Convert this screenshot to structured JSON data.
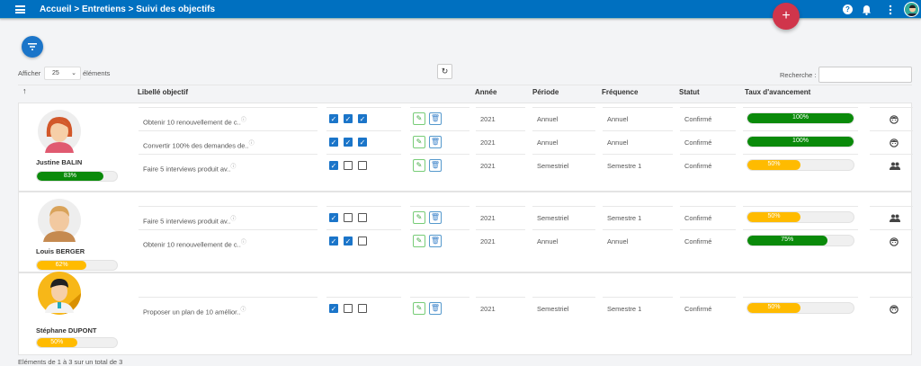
{
  "topbar": {
    "breadcrumb": "Accueil > Entretiens > Suivi des objectifs",
    "add_label": "+",
    "help_label": "?"
  },
  "colors": {
    "header": "#0070c0",
    "fab": "#d0354b",
    "green": "#0a8a0a",
    "yellow": "#ffbb00",
    "primary": "#1b75c9"
  },
  "toolbar": {
    "show_label": "Afficher",
    "page_size": "25",
    "elements_label": "éléments",
    "search_label": "Recherche :",
    "search_value": ""
  },
  "columns": {
    "sort": "↑",
    "label": "Libellé objectif",
    "year": "Année",
    "period": "Période",
    "frequency": "Fréquence",
    "status": "Statut",
    "progress": "Taux d'avancement"
  },
  "groups": [
    {
      "name": "Justine BALIN",
      "progress": 83,
      "progress_label": "83%",
      "avatar": "female-red-hair",
      "rows": [
        {
          "label": "Obtenir 10 renouvellement de c..",
          "checks": [
            true,
            true,
            true
          ],
          "year": "2021",
          "period": "Annuel",
          "frequency": "Annuel",
          "status": "Confirmé",
          "progress": 100,
          "progress_label": "100%",
          "icon": "person-icon"
        },
        {
          "label": "Convertir 100% des demandes de..",
          "checks": [
            true,
            true,
            true
          ],
          "year": "2021",
          "period": "Annuel",
          "frequency": "Annuel",
          "status": "Confirmé",
          "progress": 100,
          "progress_label": "100%",
          "icon": "person-icon"
        },
        {
          "label": "Faire 5 interviews produit av..",
          "checks": [
            true,
            false,
            false
          ],
          "year": "2021",
          "period": "Semestriel",
          "frequency": "Semestre 1",
          "status": "Confirmé",
          "progress": 50,
          "progress_label": "50%",
          "icon": "group-icon"
        }
      ]
    },
    {
      "name": "Louis BERGER",
      "progress": 62,
      "progress_label": "62%",
      "avatar": "male-blond",
      "rows": [
        {
          "label": "Faire 5 interviews produit av..",
          "checks": [
            true,
            false,
            false
          ],
          "year": "2021",
          "period": "Semestriel",
          "frequency": "Semestre 1",
          "status": "Confirmé",
          "progress": 50,
          "progress_label": "50%",
          "icon": "group-icon"
        },
        {
          "label": "Obtenir 10 renouvellement de c..",
          "checks": [
            true,
            true,
            false
          ],
          "year": "2021",
          "period": "Annuel",
          "frequency": "Annuel",
          "status": "Confirmé",
          "progress": 75,
          "progress_label": "75%",
          "icon": "person-icon"
        }
      ]
    },
    {
      "name": "Stéphane DUPONT",
      "progress": 50,
      "progress_label": "50%",
      "avatar": "male-doctor",
      "rows": [
        {
          "label": "Proposer un plan de 10 amélior..",
          "checks": [
            true,
            false,
            false
          ],
          "year": "2021",
          "period": "Semestriel",
          "frequency": "Semestre 1",
          "status": "Confirmé",
          "progress": 50,
          "progress_label": "50%",
          "icon": "person-icon"
        }
      ]
    }
  ],
  "footer": {
    "summary": "Eléments de 1 à 3 sur un total de 3"
  }
}
